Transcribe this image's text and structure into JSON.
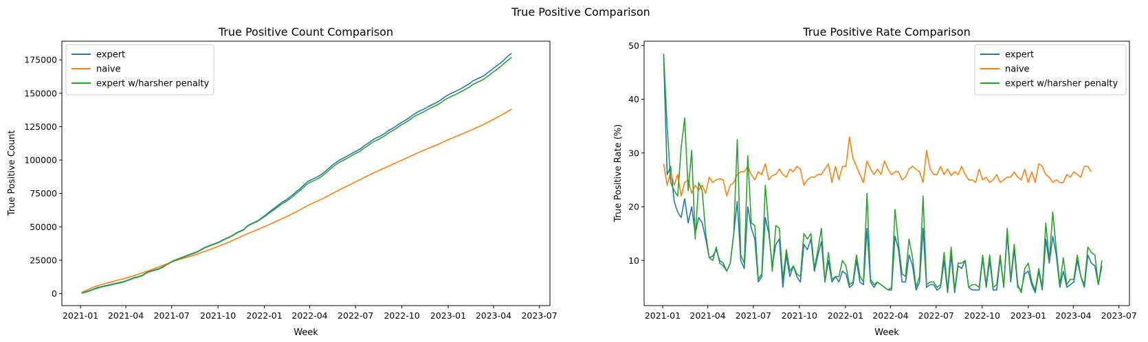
{
  "figure": {
    "suptitle": "True Positive Comparison"
  },
  "colors": {
    "expert": "#1f77b4",
    "naive": "#ff7f0e",
    "harsh": "#2ca02c"
  },
  "chart_data": [
    {
      "type": "line",
      "title": "True Positive Count Comparison",
      "xlabel": "Week",
      "ylabel": "True Positive Count",
      "x_start": "2021-01-03",
      "x_step_days": 7,
      "x_ticks": [
        "2021-01",
        "2021-04",
        "2021-07",
        "2021-10",
        "2022-01",
        "2022-04",
        "2022-07",
        "2022-10",
        "2023-01",
        "2023-04",
        "2023-07"
      ],
      "xlim": [
        "2020-11-25",
        "2023-07-22"
      ],
      "ylim": [
        -9000,
        189000
      ],
      "y_ticks": [
        0,
        25000,
        50000,
        75000,
        100000,
        125000,
        150000,
        175000
      ],
      "y_tick_labels": [
        "0",
        "25000",
        "50000",
        "75000",
        "100000",
        "125000",
        "150000",
        "175000"
      ],
      "grid": false,
      "legend": "top-left",
      "series": [
        {
          "name": "expert",
          "color_key": "expert",
          "values": [
            500,
            1200,
            2000,
            3000,
            4000,
            4800,
            5400,
            6000,
            6600,
            7200,
            7800,
            8400,
            9000,
            10000,
            11000,
            12000,
            12600,
            13400,
            15000,
            16400,
            17200,
            17900,
            18600,
            20100,
            21600,
            23100,
            24600,
            25600,
            26600,
            27600,
            28600,
            29600,
            30600,
            31600,
            33100,
            34600,
            35600,
            36600,
            37600,
            38600,
            40100,
            41300,
            42500,
            43800,
            45600,
            46800,
            48000,
            50600,
            52100,
            53300,
            54500,
            56400,
            58400,
            60600,
            62600,
            64600,
            66600,
            68600,
            70100,
            72100,
            74100,
            76600,
            78600,
            81100,
            83600,
            85100,
            86300,
            87600,
            89100,
            91200,
            93500,
            95900,
            97800,
            99700,
            101100,
            102400,
            104000,
            105500,
            106800,
            108200,
            110300,
            112000,
            114000,
            115800,
            117000,
            118300,
            120000,
            122000,
            123400,
            125000,
            126900,
            128500,
            130000,
            131800,
            133800,
            135500,
            136800,
            138000,
            139500,
            140900,
            142200,
            143600,
            145200,
            147200,
            148800,
            150100,
            151300,
            152600,
            154100,
            155700,
            157100,
            159200,
            160500,
            161700,
            163000,
            165000,
            167000,
            169000,
            171000,
            173000,
            175500,
            178000,
            180000
          ]
        },
        {
          "name": "naive",
          "color_key": "naive",
          "values": [
            800,
            2000,
            3200,
            4400,
            5400,
            6200,
            7000,
            7700,
            8400,
            9100,
            9800,
            10500,
            11200,
            12000,
            12800,
            13600,
            14400,
            15300,
            16200,
            17100,
            18100,
            19100,
            20100,
            21100,
            22100,
            23100,
            24100,
            24900,
            25700,
            26500,
            27300,
            28100,
            28900,
            29800,
            30700,
            31600,
            32600,
            33600,
            34600,
            35600,
            36600,
            37600,
            38800,
            40000,
            41200,
            42400,
            43600,
            44700,
            45800,
            46900,
            48000,
            49100,
            50200,
            51400,
            52600,
            53800,
            55000,
            56200,
            57400,
            58700,
            60000,
            61400,
            62800,
            64200,
            65700,
            67000,
            68200,
            69400,
            70600,
            71900,
            73300,
            74700,
            76100,
            77500,
            78800,
            80000,
            81300,
            82700,
            84000,
            85300,
            86700,
            88000,
            89300,
            90500,
            91700,
            92900,
            94100,
            95300,
            96500,
            97700,
            98900,
            100100,
            101300,
            102500,
            103700,
            104900,
            106100,
            107200,
            108300,
            109400,
            110500,
            111600,
            112800,
            114000,
            115200,
            116300,
            117400,
            118500,
            119600,
            120700,
            121800,
            123000,
            124200,
            125400,
            126600,
            127900,
            129300,
            130700,
            132100,
            133500,
            135000,
            136600,
            138200
          ]
        },
        {
          "name": "expert w/harsher penalty",
          "color_key": "harsh",
          "values": [
            200,
            900,
            1700,
            2700,
            3700,
            4500,
            5100,
            5700,
            6300,
            6900,
            7500,
            8100,
            8700,
            9700,
            10700,
            11700,
            12300,
            13100,
            14700,
            16100,
            16900,
            17600,
            18300,
            19800,
            21300,
            22800,
            24300,
            25300,
            26300,
            27300,
            28300,
            29300,
            30300,
            31300,
            32800,
            34300,
            35300,
            36300,
            37300,
            38300,
            39800,
            41000,
            42200,
            43500,
            45300,
            46500,
            47700,
            50300,
            51800,
            53000,
            54200,
            56000,
            57800,
            59800,
            61700,
            63600,
            65500,
            67400,
            68900,
            70800,
            72700,
            75200,
            77200,
            79600,
            82000,
            83500,
            84700,
            86000,
            87500,
            89600,
            91900,
            94300,
            96200,
            98100,
            99500,
            100800,
            102400,
            103900,
            105200,
            106600,
            108700,
            110300,
            112300,
            114000,
            115200,
            116500,
            118200,
            120200,
            121600,
            123200,
            125100,
            126700,
            128200,
            130000,
            131900,
            133500,
            134800,
            136000,
            137500,
            138900,
            140200,
            141500,
            143000,
            145000,
            146500,
            147800,
            149000,
            150200,
            151700,
            153200,
            154600,
            156600,
            157900,
            159100,
            160400,
            162300,
            164300,
            166300,
            168300,
            170300,
            172700,
            175000,
            177000
          ]
        }
      ]
    },
    {
      "type": "line",
      "title": "True Positive Rate Comparison",
      "xlabel": "Week",
      "ylabel": "True Positive Rate (%)",
      "x_start": "2021-01-03",
      "x_step_days": 7,
      "x_ticks": [
        "2021-01",
        "2021-04",
        "2021-07",
        "2021-10",
        "2022-01",
        "2022-04",
        "2022-07",
        "2022-10",
        "2023-01",
        "2023-04",
        "2023-07"
      ],
      "xlim": [
        "2020-11-25",
        "2023-07-22"
      ],
      "ylim": [
        1.6,
        50.8
      ],
      "y_ticks": [
        10,
        20,
        30,
        40,
        50
      ],
      "y_tick_labels": [
        "10",
        "20",
        "30",
        "40",
        "50"
      ],
      "grid": false,
      "legend": "top-right",
      "series": [
        {
          "name": "expert",
          "color_key": "expert",
          "values": [
            48,
            26,
            27.5,
            21,
            19,
            18,
            21.5,
            17,
            20,
            15,
            18,
            17,
            14,
            10.5,
            10.8,
            12,
            10,
            9.5,
            8,
            9.5,
            15,
            21,
            10,
            8.5,
            20,
            16,
            14,
            6,
            7,
            18,
            15,
            9,
            13,
            14,
            5,
            11,
            7,
            9,
            7,
            6,
            13,
            12,
            14,
            8,
            11,
            13.5,
            6,
            10,
            6,
            7,
            6,
            8,
            7.5,
            5,
            5.5,
            10,
            6,
            5.5,
            16,
            6,
            5,
            6,
            5.5,
            5,
            4.5,
            4.5,
            14.5,
            12,
            6,
            6,
            11,
            9,
            4.5,
            6,
            16,
            5,
            5.5,
            5.5,
            4.5,
            5,
            10,
            4,
            11,
            4,
            9,
            8.5,
            10,
            5,
            4.5,
            4.5,
            4.5,
            10.5,
            5,
            10,
            4.5,
            4.5,
            10.5,
            5,
            15,
            6,
            12,
            5,
            4.5,
            7.5,
            8,
            5.5,
            4,
            8,
            4.5,
            14,
            9.5,
            14.5,
            11,
            5,
            8,
            5,
            5.5,
            6,
            10,
            7,
            5,
            11,
            9.5,
            9,
            5.5,
            9
          ]
        },
        {
          "name": "naive",
          "color_key": "naive",
          "values": [
            28,
            24,
            26.5,
            24,
            26,
            22,
            24.5,
            25,
            22.5,
            24,
            23,
            24,
            22.5,
            25.5,
            24.5,
            25,
            25.2,
            25,
            22,
            24,
            24.5,
            26,
            26.5,
            26.5,
            27.5,
            26,
            25,
            26.5,
            26,
            28,
            25,
            25.8,
            26,
            27,
            26,
            25.5,
            27,
            26.5,
            27.5,
            27,
            24,
            25,
            25.5,
            25.5,
            26,
            26,
            27,
            28,
            24.5,
            27.5,
            25,
            27.5,
            27.5,
            33,
            29,
            27.5,
            26,
            24.5,
            28.5,
            27,
            26,
            27,
            26,
            28.5,
            27,
            26,
            26.5,
            26.5,
            25,
            25.5,
            27,
            27.5,
            27,
            26.5,
            24.5,
            30.5,
            27,
            26,
            26,
            27.5,
            26,
            27,
            25.8,
            26.5,
            26,
            27.5,
            26,
            25,
            25,
            24.5,
            27,
            25,
            25.5,
            24.5,
            25,
            26,
            24.5,
            25,
            25.5,
            25.5,
            26.5,
            25.5,
            25,
            27,
            24.5,
            26.5,
            24.5,
            28,
            27.5,
            26,
            25.5,
            24.5,
            25,
            24.5,
            24.5,
            26,
            25.5,
            26.5,
            26,
            25.5,
            27.5,
            27.5,
            26.5
          ]
        },
        {
          "name": "expert w/harsher penalty",
          "color_key": "harsh",
          "values": [
            48.5,
            35,
            24.5,
            23,
            22,
            31,
            36.5,
            23,
            30.5,
            14,
            24.5,
            23,
            15,
            10.5,
            10,
            12.5,
            9.5,
            9,
            8,
            9.5,
            15,
            32.5,
            11,
            9.5,
            29.5,
            17,
            16.5,
            6.5,
            7.5,
            24,
            16,
            8,
            16.5,
            16,
            6.5,
            12,
            8,
            9,
            7.5,
            7,
            15,
            14,
            15,
            8.5,
            12,
            16,
            6,
            11.5,
            6.5,
            7,
            7,
            10,
            9,
            5.5,
            6,
            11,
            7,
            6,
            22.5,
            6.5,
            5.5,
            6,
            5.5,
            5,
            4.5,
            5,
            19.5,
            13,
            7.5,
            7,
            14,
            10.5,
            5,
            7,
            22,
            5.5,
            6,
            6,
            5,
            5.5,
            11.5,
            4.5,
            12.5,
            4.5,
            9.5,
            9.5,
            10,
            5,
            5.5,
            5.5,
            5,
            11,
            5.5,
            11,
            5,
            5.5,
            11,
            5,
            16,
            6.5,
            13,
            5.5,
            4,
            8.5,
            9.5,
            6,
            4.5,
            8.5,
            5,
            17,
            10,
            19,
            12,
            5.5,
            10.5,
            5.5,
            6.5,
            6.5,
            11,
            7,
            5.5,
            12.5,
            11.5,
            11,
            5.5,
            10
          ]
        }
      ]
    }
  ]
}
